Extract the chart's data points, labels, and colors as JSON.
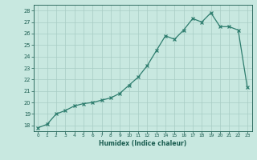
{
  "x": [
    0,
    1,
    2,
    3,
    4,
    5,
    6,
    7,
    8,
    9,
    10,
    11,
    12,
    13,
    14,
    15,
    16,
    17,
    18,
    19,
    20,
    21,
    22,
    23
  ],
  "y": [
    17.8,
    18.1,
    19.0,
    19.3,
    19.7,
    19.9,
    20.0,
    20.2,
    20.4,
    20.8,
    21.5,
    22.2,
    23.2,
    24.5,
    25.8,
    25.5,
    26.3,
    27.3,
    27.0,
    27.8,
    26.6,
    26.6,
    26.3,
    21.3
  ],
  "xlabel": "Humidex (Indice chaleur)",
  "xlim": [
    -0.5,
    23.5
  ],
  "ylim": [
    17.5,
    28.5
  ],
  "yticks": [
    18,
    19,
    20,
    21,
    22,
    23,
    24,
    25,
    26,
    27,
    28
  ],
  "xticks": [
    0,
    1,
    2,
    3,
    4,
    5,
    6,
    7,
    8,
    9,
    10,
    11,
    12,
    13,
    14,
    15,
    16,
    17,
    18,
    19,
    20,
    21,
    22,
    23
  ],
  "line_color": "#2e7d6e",
  "bg_color": "#c8e8e0",
  "grid_color": "#a8ccc4",
  "tick_label_color": "#1a5c50",
  "axis_label_color": "#1a5c50"
}
